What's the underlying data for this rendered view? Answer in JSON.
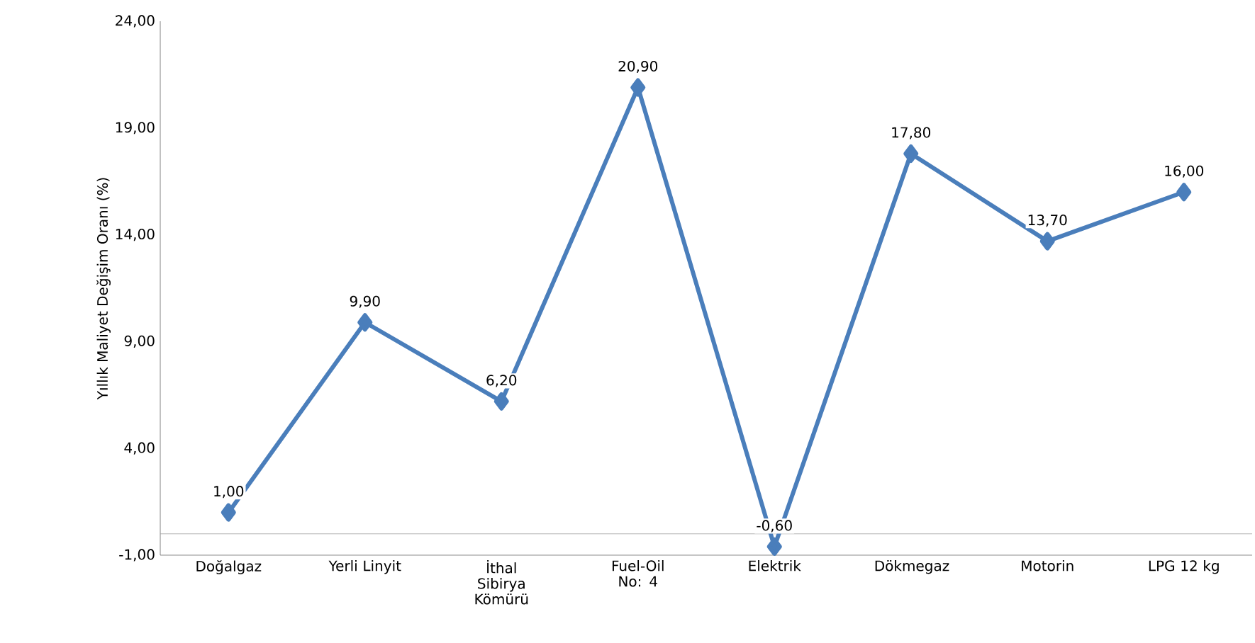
{
  "chart_data": {
    "type": "line",
    "ylabel": "Yıllık Maliyet Değişim Oranı (%)",
    "categories": [
      "Doğalgaz",
      "Yerli Linyit",
      "İthal Sibirya Kömürü",
      "Fuel-Oil No: 4",
      "Elektrik",
      "Dökmegaz",
      "Motorin",
      "LPG 12 kg"
    ],
    "series": [
      {
        "color": "#4a7ebb",
        "values": [
          1.0,
          9.9,
          6.2,
          20.9,
          -0.6,
          17.8,
          13.7,
          16.0
        ],
        "value_labels": [
          "1,00",
          "9,90",
          "6,20",
          "20,90",
          "-0,60",
          "17,80",
          "13,70",
          "16,00"
        ]
      }
    ],
    "ylim": [
      -1,
      24
    ],
    "yticks": [
      {
        "value": -1,
        "label": "-1,00"
      },
      {
        "value": 4,
        "label": "4,00"
      },
      {
        "value": 9,
        "label": "9,00"
      },
      {
        "value": 14,
        "label": "14,00"
      },
      {
        "value": 19,
        "label": "19,00"
      },
      {
        "value": 24,
        "label": "24,00"
      }
    ],
    "ref_lines": [
      {
        "axis": "y",
        "value": 0,
        "color": "#a0a0a0"
      }
    ],
    "marker": "diamond",
    "line_style": "solid"
  }
}
